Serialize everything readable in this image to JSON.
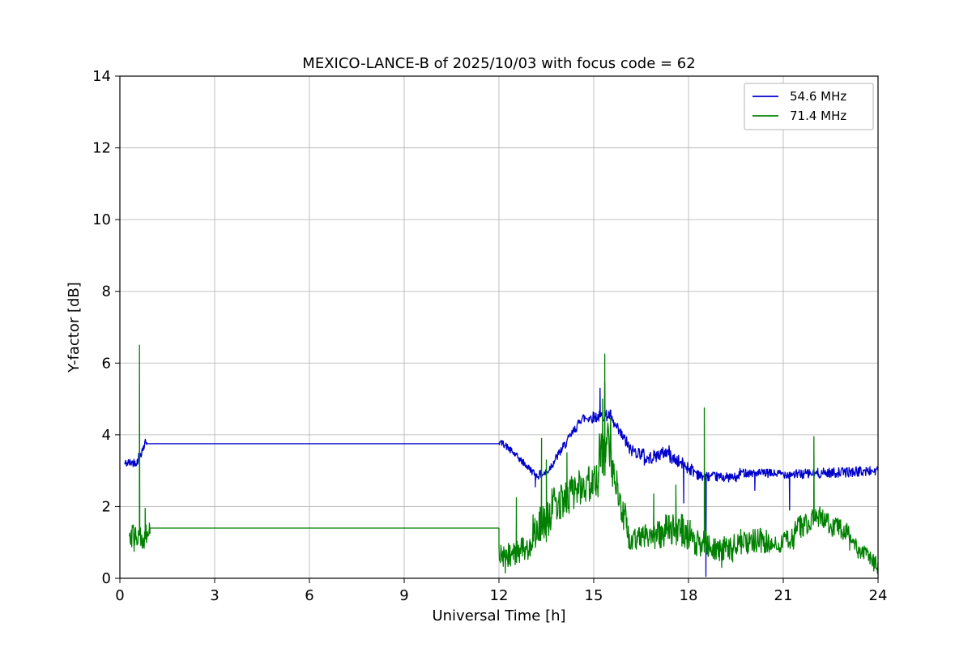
{
  "chart_data": {
    "type": "line",
    "title": "MEXICO-LANCE-B of 2025/10/03 with focus code = 62",
    "xlabel": "Universal Time [h]",
    "ylabel": "Y-factor [dB]",
    "xlim": [
      0,
      24
    ],
    "ylim": [
      0,
      14
    ],
    "xticks": [
      0,
      3,
      6,
      9,
      12,
      15,
      18,
      21,
      24
    ],
    "yticks": [
      0,
      2,
      4,
      6,
      8,
      10,
      12,
      14
    ],
    "grid": true,
    "grid_color": "#b0b0b0",
    "background": "#ffffff",
    "legend_position": "upper right",
    "seed": 42,
    "sample_step_h": 0.015,
    "segment_format": [
      "x0",
      "x1",
      "y0",
      "y1",
      "noise_amplitude"
    ],
    "spike_format": [
      "x",
      "y_peak",
      "y_base"
    ],
    "series": [
      {
        "name": "54.6 MHz",
        "color": "#0000cc",
        "segments": [
          [
            0.15,
            0.55,
            3.2,
            3.25,
            0.12
          ],
          [
            0.55,
            0.85,
            3.3,
            3.85,
            0.15
          ],
          [
            0.85,
            12.0,
            3.75,
            3.75,
            0
          ],
          [
            12.0,
            12.15,
            3.8,
            3.75,
            0.08
          ],
          [
            12.15,
            13.15,
            3.75,
            2.9,
            0.1
          ],
          [
            13.15,
            13.55,
            2.85,
            2.95,
            0.12
          ],
          [
            13.55,
            14.55,
            3.0,
            4.35,
            0.13
          ],
          [
            14.55,
            15.55,
            4.45,
            4.55,
            0.16
          ],
          [
            15.55,
            16.1,
            4.4,
            3.7,
            0.18
          ],
          [
            16.1,
            16.6,
            3.6,
            3.45,
            0.18
          ],
          [
            16.6,
            17.4,
            3.3,
            3.55,
            0.18
          ],
          [
            17.4,
            18.35,
            3.4,
            2.9,
            0.18
          ],
          [
            18.35,
            19.6,
            2.85,
            2.8,
            0.13
          ],
          [
            19.6,
            21.4,
            2.95,
            2.9,
            0.12
          ],
          [
            21.4,
            24.0,
            2.9,
            3.0,
            0.14
          ]
        ],
        "spikes": [
          [
            13.15,
            2.55,
            2.9
          ],
          [
            15.2,
            5.3,
            4.5
          ],
          [
            15.35,
            5.45,
            4.5
          ],
          [
            17.85,
            2.1,
            3.1
          ],
          [
            18.55,
            0.05,
            2.8
          ],
          [
            20.1,
            2.45,
            2.9
          ],
          [
            21.2,
            1.9,
            2.9
          ]
        ]
      },
      {
        "name": "71.4 MHz",
        "color": "#008000",
        "segments": [
          [
            0.3,
            0.95,
            1.15,
            1.2,
            0.35
          ],
          [
            0.95,
            12.0,
            1.4,
            1.4,
            0
          ],
          [
            12.0,
            12.65,
            0.65,
            0.7,
            0.35
          ],
          [
            12.65,
            13.05,
            0.75,
            0.9,
            0.35
          ],
          [
            13.05,
            13.65,
            1.1,
            1.8,
            0.65
          ],
          [
            13.65,
            14.4,
            2.0,
            2.4,
            0.5
          ],
          [
            14.4,
            15.15,
            2.5,
            2.7,
            0.5
          ],
          [
            15.15,
            15.55,
            3.3,
            3.8,
            0.7
          ],
          [
            15.55,
            16.05,
            3.2,
            1.4,
            0.5
          ],
          [
            16.05,
            17.25,
            1.2,
            1.2,
            0.4
          ],
          [
            17.25,
            18.05,
            1.4,
            1.3,
            0.5
          ],
          [
            18.05,
            18.65,
            1.0,
            1.0,
            0.4
          ],
          [
            18.65,
            19.4,
            0.85,
            0.8,
            0.35
          ],
          [
            19.4,
            21.35,
            1.0,
            1.1,
            0.35
          ],
          [
            21.35,
            22.25,
            1.4,
            1.7,
            0.35
          ],
          [
            22.25,
            23.1,
            1.6,
            1.2,
            0.3
          ],
          [
            23.1,
            24.0,
            1.0,
            0.35,
            0.25
          ]
        ],
        "spikes": [
          [
            0.45,
            0.75,
            1.1
          ],
          [
            0.62,
            6.5,
            1.2
          ],
          [
            0.8,
            1.95,
            1.3
          ],
          [
            12.2,
            0.15,
            0.6
          ],
          [
            12.55,
            2.25,
            0.8
          ],
          [
            13.35,
            3.9,
            1.6
          ],
          [
            13.5,
            3.3,
            1.7
          ],
          [
            14.15,
            3.5,
            2.3
          ],
          [
            15.28,
            5.0,
            3.7
          ],
          [
            15.35,
            6.25,
            3.8
          ],
          [
            16.9,
            2.35,
            1.2
          ],
          [
            17.6,
            2.6,
            1.3
          ],
          [
            18.5,
            4.75,
            1.1
          ],
          [
            19.05,
            0.3,
            0.8
          ],
          [
            21.97,
            3.95,
            1.6
          ]
        ]
      }
    ]
  }
}
